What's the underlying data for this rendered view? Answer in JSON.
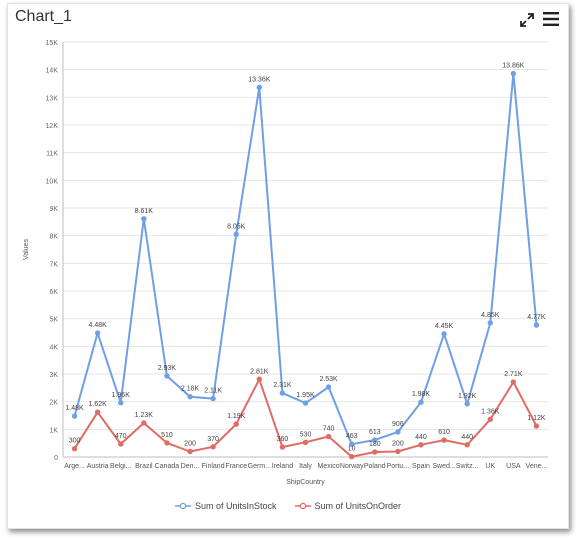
{
  "header": {
    "title": "Chart_1",
    "expand_icon": "expand-arrows-icon",
    "menu_icon": "hamburger-menu-icon"
  },
  "chart_data": {
    "type": "line",
    "title": "",
    "xlabel": "ShipCountry",
    "ylabel": "Values",
    "ylim": [
      0,
      15000
    ],
    "yticks": [
      "0",
      "1K",
      "2K",
      "3K",
      "4K",
      "5K",
      "6K",
      "7K",
      "8K",
      "9K",
      "10K",
      "11K",
      "12K",
      "13K",
      "14K",
      "15K"
    ],
    "grid": true,
    "legend_position": "bottom",
    "categories": [
      "Arge...",
      "Austria",
      "Belgi...",
      "Brazil",
      "Canada",
      "Den...",
      "Finland",
      "France",
      "Germ...",
      "Ireland",
      "Italy",
      "Mexico",
      "Norway",
      "Poland",
      "Portu...",
      "Spain",
      "Swed...",
      "Switz...",
      "UK",
      "USA",
      "Vene..."
    ],
    "series": [
      {
        "name": "Sum of UnitsInStock",
        "color": "#6fa0e6",
        "values": [
          1480,
          4480,
          1960,
          8610,
          2930,
          2180,
          2110,
          8050,
          13360,
          2310,
          1950,
          2530,
          463,
          613,
          906,
          1980,
          4450,
          1920,
          4850,
          13860,
          4770
        ],
        "labels": [
          "1.48K",
          "4.48K",
          "1.96K",
          "8.61K",
          "2.93K",
          "2.18K",
          "2.11K",
          "8.05K",
          "13.36K",
          "2.31K",
          "1.95K",
          "2.53K",
          "463",
          "613",
          "906",
          "1.98K",
          "4.45K",
          "1.92K",
          "4.85K",
          "13.86K",
          "4.77K"
        ]
      },
      {
        "name": "Sum of UnitsOnOrder",
        "color": "#e06c65",
        "values": [
          300,
          1620,
          470,
          1230,
          510,
          200,
          370,
          1190,
          2810,
          360,
          530,
          740,
          10,
          180,
          200,
          440,
          610,
          440,
          1360,
          2710,
          1120
        ],
        "labels": [
          "300",
          "1.62K",
          "470",
          "1.23K",
          "510",
          "200",
          "370",
          "1.19K",
          "2.81K",
          "360",
          "530",
          "740",
          "10",
          "180",
          "200",
          "440",
          "610",
          "440",
          "1.36K",
          "2.71K",
          "1.12K"
        ]
      }
    ]
  }
}
